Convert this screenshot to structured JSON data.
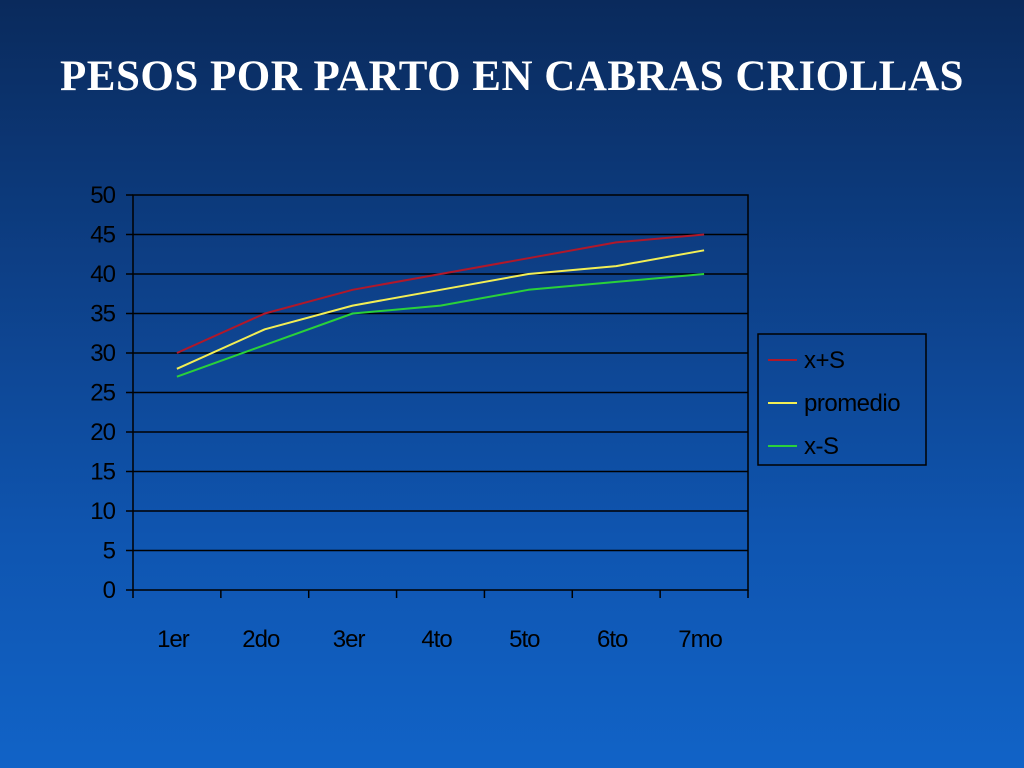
{
  "slide": {
    "title": "PESOS POR PARTO EN CABRAS CRIOLLAS"
  },
  "chart_data": {
    "type": "line",
    "title": "",
    "xlabel": "",
    "ylabel": "",
    "categories": [
      "1er",
      "2do",
      "3er",
      "4to",
      "5to",
      "6to",
      "7mo"
    ],
    "ylim": [
      0,
      50
    ],
    "y_ticks": [
      0,
      5,
      10,
      15,
      20,
      25,
      30,
      35,
      40,
      45,
      50
    ],
    "grid": "horizontal",
    "legend_position": "right",
    "series": [
      {
        "name": "x+S",
        "color": "#b0182a",
        "values": [
          30,
          35,
          38,
          40,
          42,
          44,
          45
        ]
      },
      {
        "name": "promedio",
        "color": "#f2ee55",
        "values": [
          28,
          33,
          36,
          38,
          40,
          41,
          43
        ]
      },
      {
        "name": "x-S",
        "color": "#2ad13a",
        "values": [
          27,
          31,
          35,
          36,
          38,
          39,
          40
        ]
      }
    ]
  }
}
